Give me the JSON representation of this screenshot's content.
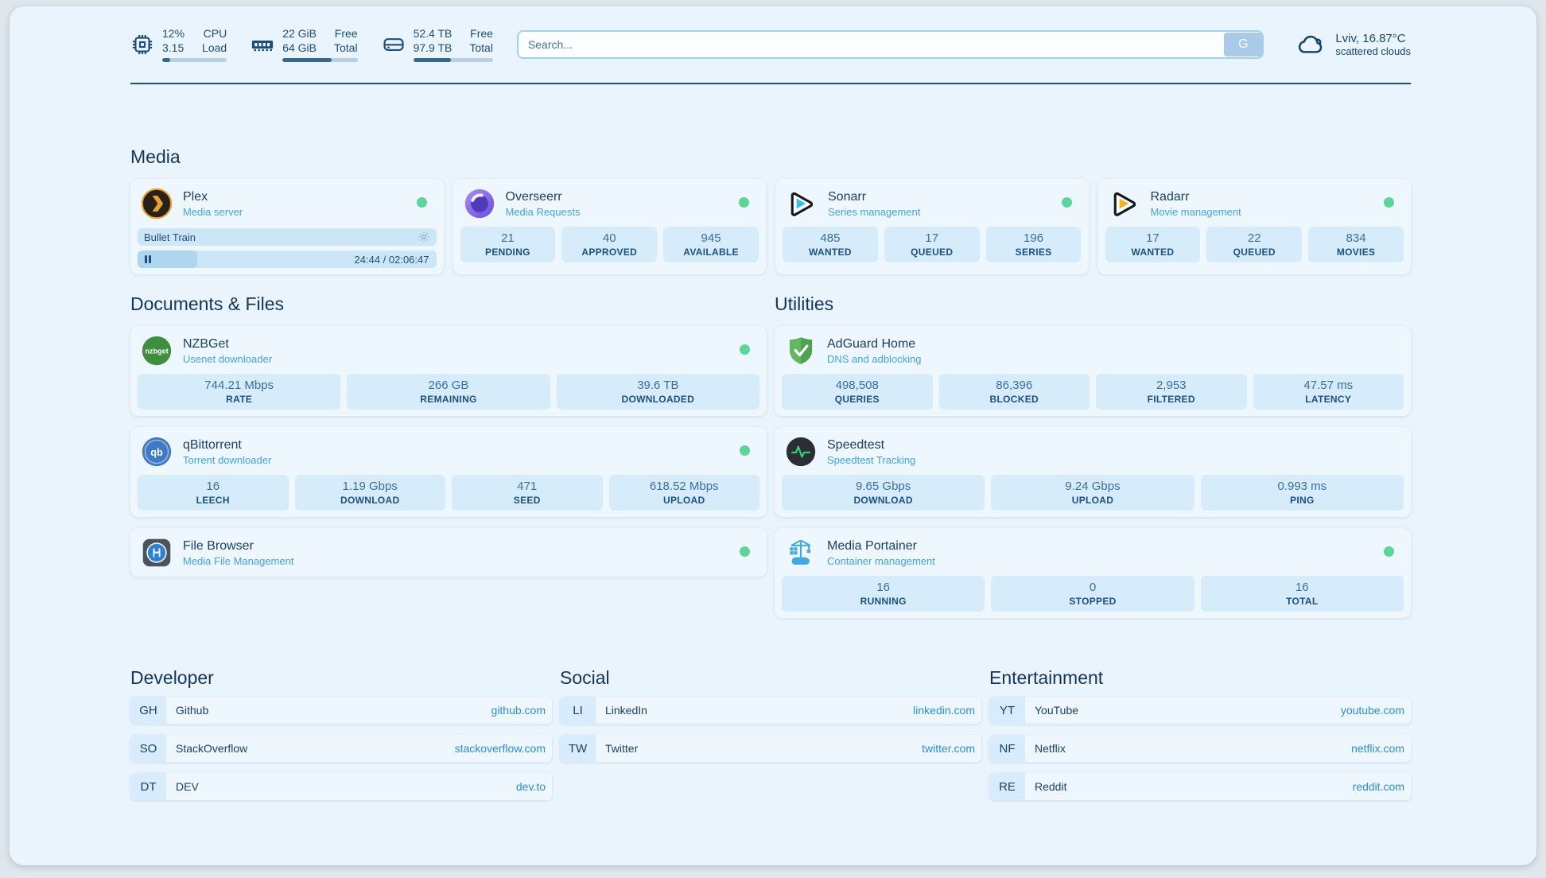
{
  "header": {
    "cpu": {
      "value_top": "12%",
      "value_bottom": "3.15",
      "label_top": "CPU",
      "label_bottom": "Load",
      "percent": 12
    },
    "ram": {
      "value_top": "22 GiB",
      "value_bottom": "64 GiB",
      "label_top": "Free",
      "label_bottom": "Total",
      "percent": 66
    },
    "disk": {
      "value_top": "52.4 TB",
      "value_bottom": "97.9 TB",
      "label_top": "Free",
      "label_bottom": "Total",
      "percent": 47
    },
    "search": {
      "placeholder": "Search...",
      "button_label": "G"
    },
    "weather": {
      "line1": "Lviv, 16.87°C",
      "line2": "scattered clouds"
    }
  },
  "media": {
    "heading": "Media",
    "plex": {
      "title": "Plex",
      "subtitle": "Media server",
      "now_playing": "Bullet Train",
      "time": "24:44 / 02:06:47",
      "progress_percent": 20
    },
    "overseerr": {
      "title": "Overseerr",
      "subtitle": "Media Requests",
      "stats": [
        {
          "value": "21",
          "label": "PENDING"
        },
        {
          "value": "40",
          "label": "APPROVED"
        },
        {
          "value": "945",
          "label": "AVAILABLE"
        }
      ]
    },
    "sonarr": {
      "title": "Sonarr",
      "subtitle": "Series management",
      "stats": [
        {
          "value": "485",
          "label": "WANTED"
        },
        {
          "value": "17",
          "label": "QUEUED"
        },
        {
          "value": "196",
          "label": "SERIES"
        }
      ]
    },
    "radarr": {
      "title": "Radarr",
      "subtitle": "Movie management",
      "stats": [
        {
          "value": "17",
          "label": "WANTED"
        },
        {
          "value": "22",
          "label": "QUEUED"
        },
        {
          "value": "834",
          "label": "MOVIES"
        }
      ]
    }
  },
  "documents": {
    "heading": "Documents & Files",
    "nzbget": {
      "title": "NZBGet",
      "subtitle": "Usenet downloader",
      "icon_text": "nzbget",
      "stats": [
        {
          "value": "744.21 Mbps",
          "label": "RATE"
        },
        {
          "value": "266 GB",
          "label": "REMAINING"
        },
        {
          "value": "39.6 TB",
          "label": "DOWNLOADED"
        }
      ]
    },
    "qbittorrent": {
      "title": "qBittorrent",
      "subtitle": "Torrent downloader",
      "icon_text": "qb",
      "stats": [
        {
          "value": "16",
          "label": "LEECH"
        },
        {
          "value": "1.19 Gbps",
          "label": "DOWNLOAD"
        },
        {
          "value": "471",
          "label": "SEED"
        },
        {
          "value": "618.52 Mbps",
          "label": "UPLOAD"
        }
      ]
    },
    "filebrowser": {
      "title": "File Browser",
      "subtitle": "Media File Management"
    }
  },
  "utilities": {
    "heading": "Utilities",
    "adguard": {
      "title": "AdGuard Home",
      "subtitle": "DNS and adblocking",
      "stats": [
        {
          "value": "498,508",
          "label": "QUERIES"
        },
        {
          "value": "86,396",
          "label": "BLOCKED"
        },
        {
          "value": "2,953",
          "label": "FILTERED"
        },
        {
          "value": "47.57 ms",
          "label": "LATENCY"
        }
      ]
    },
    "speedtest": {
      "title": "Speedtest",
      "subtitle": "Speedtest Tracking",
      "stats": [
        {
          "value": "9.65 Gbps",
          "label": "DOWNLOAD"
        },
        {
          "value": "9.24 Gbps",
          "label": "UPLOAD"
        },
        {
          "value": "0.993 ms",
          "label": "PING"
        }
      ]
    },
    "portainer": {
      "title": "Media Portainer",
      "subtitle": "Container management",
      "stats": [
        {
          "value": "16",
          "label": "RUNNING"
        },
        {
          "value": "0",
          "label": "STOPPED"
        },
        {
          "value": "16",
          "label": "TOTAL"
        }
      ]
    }
  },
  "bookmarks": {
    "developer": {
      "heading": "Developer",
      "links": [
        {
          "badge": "GH",
          "name": "Github",
          "url": "github.com"
        },
        {
          "badge": "SO",
          "name": "StackOverflow",
          "url": "stackoverflow.com"
        },
        {
          "badge": "DT",
          "name": "DEV",
          "url": "dev.to"
        }
      ]
    },
    "social": {
      "heading": "Social",
      "links": [
        {
          "badge": "LI",
          "name": "LinkedIn",
          "url": "linkedin.com"
        },
        {
          "badge": "TW",
          "name": "Twitter",
          "url": "twitter.com"
        }
      ]
    },
    "entertainment": {
      "heading": "Entertainment",
      "links": [
        {
          "badge": "YT",
          "name": "YouTube",
          "url": "youtube.com"
        },
        {
          "badge": "NF",
          "name": "Netflix",
          "url": "netflix.com"
        },
        {
          "badge": "RE",
          "name": "Reddit",
          "url": "reddit.com"
        }
      ]
    }
  },
  "colors": {
    "status_green": "#5cd598",
    "navy": "#1d4e79",
    "accent_blue": "#42a4e8",
    "url_blue": "#2b8ede"
  }
}
